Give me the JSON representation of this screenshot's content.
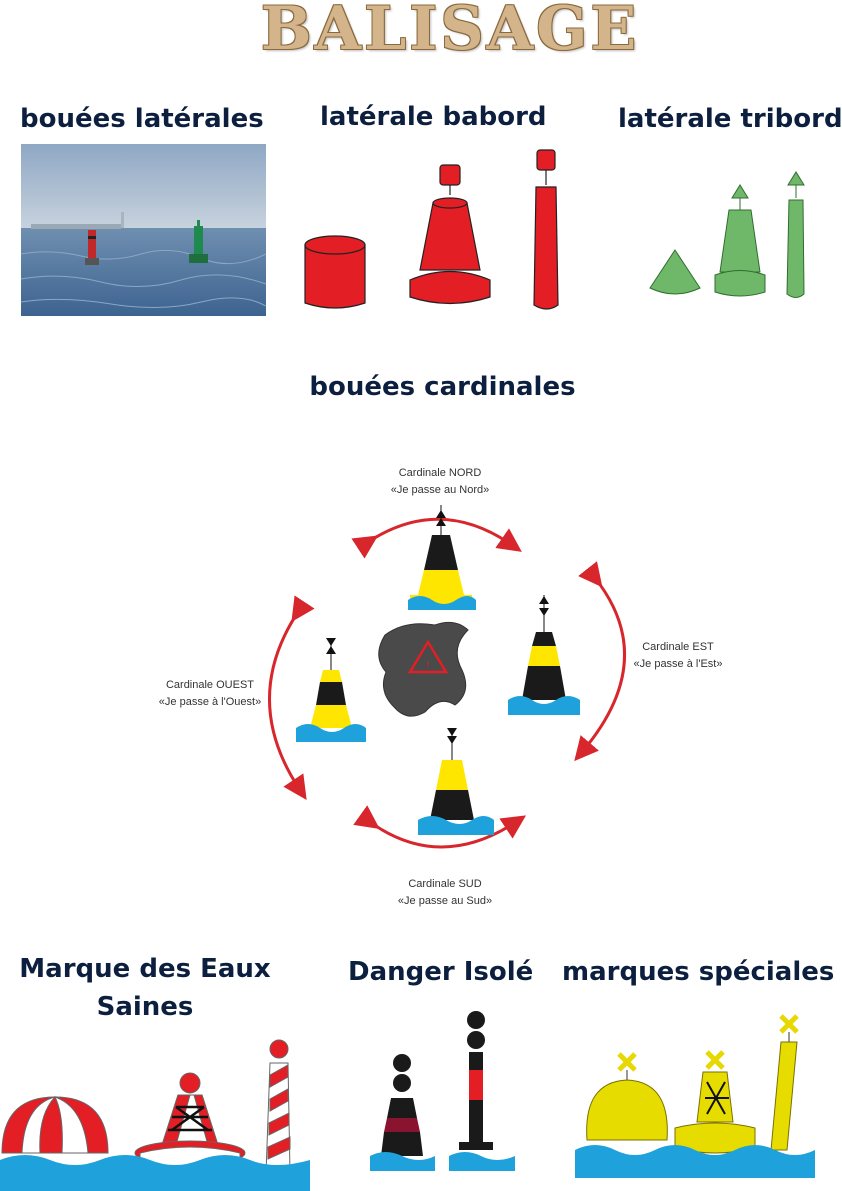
{
  "title": "BALISAGE",
  "sections": {
    "laterales": "bouées latérales",
    "babord": "latérale babord",
    "tribord": "latérale tribord",
    "cardinales": "bouées cardinales",
    "eaux_saines": "Marque des Eaux Saines",
    "danger_isole": "Danger Isolé",
    "speciales": "marques spéciales"
  },
  "cardinal_labels": {
    "nord_title": "Cardinale NORD",
    "nord_sub": "«Je passe au Nord»",
    "est_title": "Cardinale EST",
    "est_sub": "«Je passe à l'Est»",
    "ouest_title": "Cardinale OUEST",
    "ouest_sub": "«Je passe à l'Ouest»",
    "sud_title": "Cardinale SUD",
    "sud_sub": "«Je passe au Sud»"
  },
  "colors": {
    "red": "#e31e24",
    "green": "#6fb86a",
    "yellow": "#ffe600",
    "black": "#1a1a1a",
    "water": "#1fa2dc",
    "title": "#d4b48a",
    "heading": "#0c1f3f"
  }
}
